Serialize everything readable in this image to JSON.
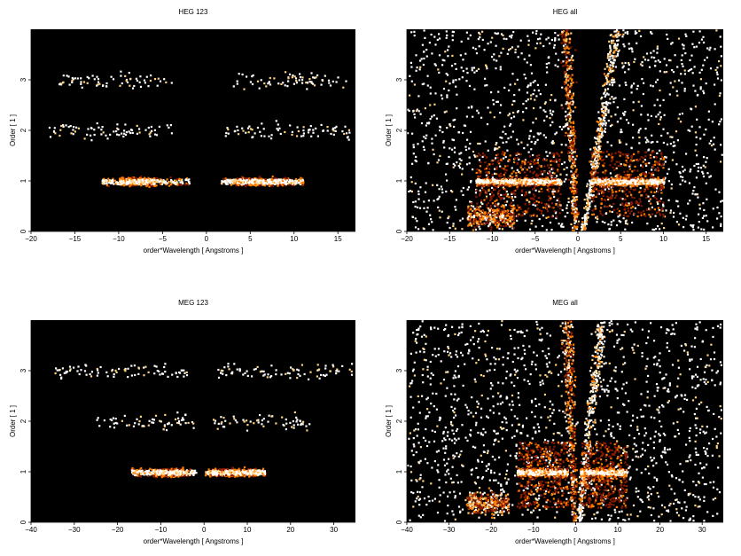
{
  "chart_data": [
    {
      "type": "heatmap",
      "title": "HEG 123",
      "xlabel": "order*Wavelength [ Angstroms ]",
      "ylabel": "Order [ 1 ]",
      "xlim": [
        -20,
        17
      ],
      "ylim": [
        0,
        4
      ],
      "xticks": [
        -20,
        -15,
        -10,
        -5,
        0,
        5,
        10,
        15
      ],
      "yticks": [
        0,
        1,
        2,
        3
      ],
      "grid": false,
      "bands": [
        {
          "order": 1,
          "x_range": [
            -12,
            -2
          ],
          "peak": [
            -10,
            -6
          ],
          "intensity": "high"
        },
        {
          "order": 1,
          "x_range": [
            1.5,
            11
          ],
          "peak": [
            3,
            9
          ],
          "intensity": "high"
        },
        {
          "order": 2,
          "x_range": [
            -18,
            -4
          ],
          "intensity": "low"
        },
        {
          "order": 2,
          "x_range": [
            2,
            16.5
          ],
          "intensity": "low"
        },
        {
          "order": 3,
          "x_range": [
            -17,
            -4
          ],
          "intensity": "low"
        },
        {
          "order": 3,
          "x_range": [
            3,
            16
          ],
          "intensity": "low"
        }
      ]
    },
    {
      "type": "heatmap",
      "title": "HEG all",
      "xlabel": "order*Wavelength [ Angstroms ]",
      "ylabel": "Order [ 1 ]",
      "xlim": [
        -20,
        17
      ],
      "ylim": [
        0,
        4
      ],
      "xticks": [
        -20,
        -15,
        -10,
        -5,
        0,
        5,
        10,
        15
      ],
      "yticks": [
        0,
        1,
        2,
        3
      ],
      "grid": false,
      "bands": [
        {
          "order": 1,
          "x_range": [
            -12,
            -2
          ],
          "intensity": "high"
        },
        {
          "order": 1,
          "x_range": [
            1.5,
            10
          ],
          "intensity": "high"
        },
        {
          "order": 0.3,
          "x_range": [
            -13,
            -7.5
          ],
          "intensity": "medium"
        }
      ],
      "wedges": [
        {
          "x_top": -1.5,
          "x_bottom": -0.3,
          "intensity": "medium"
        },
        {
          "x_top": 4.5,
          "x_bottom": 0.5,
          "intensity": "high"
        }
      ],
      "background": "scattered"
    },
    {
      "type": "heatmap",
      "title": "MEG 123",
      "xlabel": "order*Wavelength [ Angstroms ]",
      "ylabel": "Order [ 1 ]",
      "xlim": [
        -40,
        35
      ],
      "ylim": [
        0,
        4
      ],
      "xticks": [
        -40,
        -30,
        -20,
        -10,
        0,
        10,
        20,
        30
      ],
      "yticks": [
        0,
        1,
        2,
        3
      ],
      "grid": false,
      "bands": [
        {
          "order": 1,
          "x_range": [
            -17,
            -2
          ],
          "peak": [
            -12,
            -5
          ],
          "intensity": "high"
        },
        {
          "order": 1,
          "x_range": [
            0,
            14
          ],
          "peak": [
            1,
            12
          ],
          "intensity": "high"
        },
        {
          "order": 2,
          "x_range": [
            -25,
            -2
          ],
          "intensity": "low"
        },
        {
          "order": 2,
          "x_range": [
            2,
            25
          ],
          "intensity": "low"
        },
        {
          "order": 3,
          "x_range": [
            -35,
            -4
          ],
          "intensity": "low"
        },
        {
          "order": 3,
          "x_range": [
            3,
            34
          ],
          "intensity": "low"
        }
      ]
    },
    {
      "type": "heatmap",
      "title": "MEG all",
      "xlabel": "order*Wavelength [ Angstroms ]",
      "ylabel": "Order [ 1 ]",
      "xlim": [
        -40,
        35
      ],
      "ylim": [
        0,
        4
      ],
      "xticks": [
        -40,
        -30,
        -20,
        -10,
        0,
        10,
        20,
        30
      ],
      "yticks": [
        0,
        1,
        2,
        3
      ],
      "grid": false,
      "bands": [
        {
          "order": 1,
          "x_range": [
            -14,
            -2
          ],
          "intensity": "high"
        },
        {
          "order": 1,
          "x_range": [
            1,
            12
          ],
          "intensity": "high"
        },
        {
          "order": 0.4,
          "x_range": [
            -26,
            -16
          ],
          "intensity": "medium"
        }
      ],
      "wedges": [
        {
          "x_top": -2,
          "x_bottom": -0.5,
          "intensity": "medium"
        },
        {
          "x_top": 6,
          "x_bottom": 0.5,
          "intensity": "high"
        }
      ],
      "background": "scattered"
    }
  ],
  "colors": {
    "background": "#000000",
    "low": "#8b1a00",
    "medium": "#ff7f00",
    "high": "#ffffff",
    "mid_high": "#ffd27f"
  }
}
